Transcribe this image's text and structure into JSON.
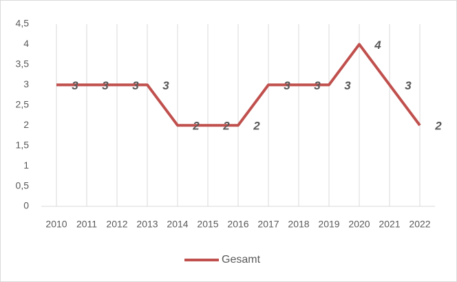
{
  "chart_data": {
    "type": "line",
    "categories": [
      "2010",
      "2011",
      "2012",
      "2013",
      "2014",
      "2015",
      "2016",
      "2017",
      "2018",
      "2019",
      "2020",
      "2021",
      "2022"
    ],
    "series": [
      {
        "name": "Gesamt",
        "color": "#c0504d",
        "values": [
          3,
          3,
          3,
          3,
          2,
          2,
          2,
          3,
          3,
          3,
          4,
          3,
          2
        ]
      }
    ],
    "ylim": [
      0,
      4.5
    ],
    "yticks": [
      0,
      {
        "value": 0.5,
        "label": "0,5"
      },
      1,
      {
        "value": 1.5,
        "label": "1,5"
      },
      2,
      {
        "value": 2.5,
        "label": "2,5"
      },
      3,
      {
        "value": 3.5,
        "label": "3,5"
      },
      4,
      {
        "value": 4.5,
        "label": "4,5"
      }
    ],
    "grid": "x",
    "legend": "bottom"
  }
}
